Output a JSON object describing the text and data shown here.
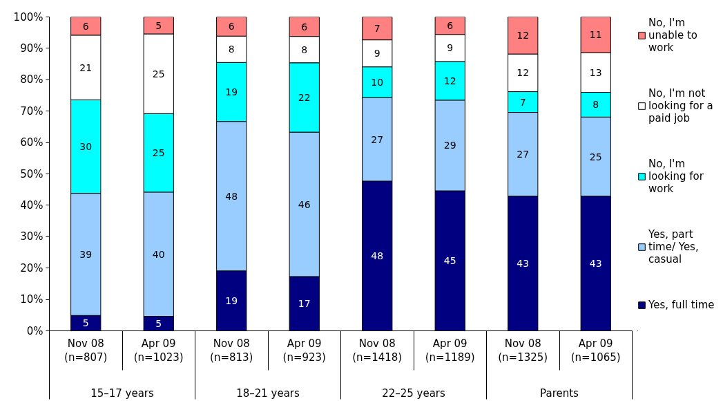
{
  "chart_data": {
    "type": "bar",
    "stacked": true,
    "categories": [
      "Nov 08 (n=807)",
      "Apr 09 (n=1023)",
      "Nov 08 (n=813)",
      "Apr 09 (n=923)",
      "Nov 08 (n=1418)",
      "Apr 09 (n=1189)",
      "Nov 08 (n=1325)",
      "Apr 09 (n=1065)"
    ],
    "annotations": [
      "15–17 years",
      "18–21 years",
      "22–25 years",
      "Parents"
    ],
    "ylim": [
      0,
      100
    ],
    "yticks": [
      {
        "value": 0,
        "label": "0%"
      },
      {
        "value": 10,
        "label": "10%"
      },
      {
        "value": 20,
        "label": "20%"
      },
      {
        "value": 30,
        "label": "30%"
      },
      {
        "value": 40,
        "label": "40%"
      },
      {
        "value": 50,
        "label": "50%"
      },
      {
        "value": 60,
        "label": "60%"
      },
      {
        "value": 70,
        "label": "70%"
      },
      {
        "value": 80,
        "label": "80%"
      },
      {
        "value": 90,
        "label": "90%"
      },
      {
        "value": 100,
        "label": "100%"
      }
    ],
    "legend": "right",
    "series": [
      {
        "name": "Yes, full time",
        "color": "#000080",
        "values": [
          4.9,
          4.6,
          19.1,
          17.3,
          47.7,
          44.6,
          42.9,
          42.9
        ],
        "value_labels": [
          "5",
          "5",
          "19",
          "17",
          "48",
          "45",
          "43",
          "43"
        ]
      },
      {
        "name": "Yes, part time/ Yes, casual",
        "color": "#99ccff",
        "values": [
          38.9,
          39.6,
          47.6,
          46.0,
          26.6,
          28.9,
          26.7,
          25.2
        ],
        "value_labels": [
          "39",
          "40",
          "48",
          "46",
          "27",
          "29",
          "27",
          "25"
        ]
      },
      {
        "name": "No, I'm looking for work",
        "color": "#00ffff",
        "values": [
          29.8,
          25.0,
          18.8,
          22.1,
          9.8,
          12.3,
          6.6,
          7.9
        ],
        "value_labels": [
          "30",
          "25",
          "19",
          "22",
          "10",
          "12",
          "7",
          "8"
        ]
      },
      {
        "name": "No, I'm not looking for a paid job",
        "color": "#ffffff",
        "values": [
          20.6,
          25.4,
          8.4,
          8.4,
          8.6,
          8.6,
          12.0,
          12.6
        ],
        "value_labels": [
          "21",
          "25",
          "8",
          "8",
          "9",
          "9",
          "12",
          "13"
        ]
      },
      {
        "name": "No, I'm unable to work",
        "color": "#ff8080",
        "values": [
          5.8,
          5.4,
          6.1,
          6.2,
          7.3,
          5.6,
          11.8,
          11.4
        ],
        "value_labels": [
          "6",
          "5",
          "6",
          "6",
          "7",
          "6",
          "12",
          "11"
        ]
      }
    ]
  }
}
